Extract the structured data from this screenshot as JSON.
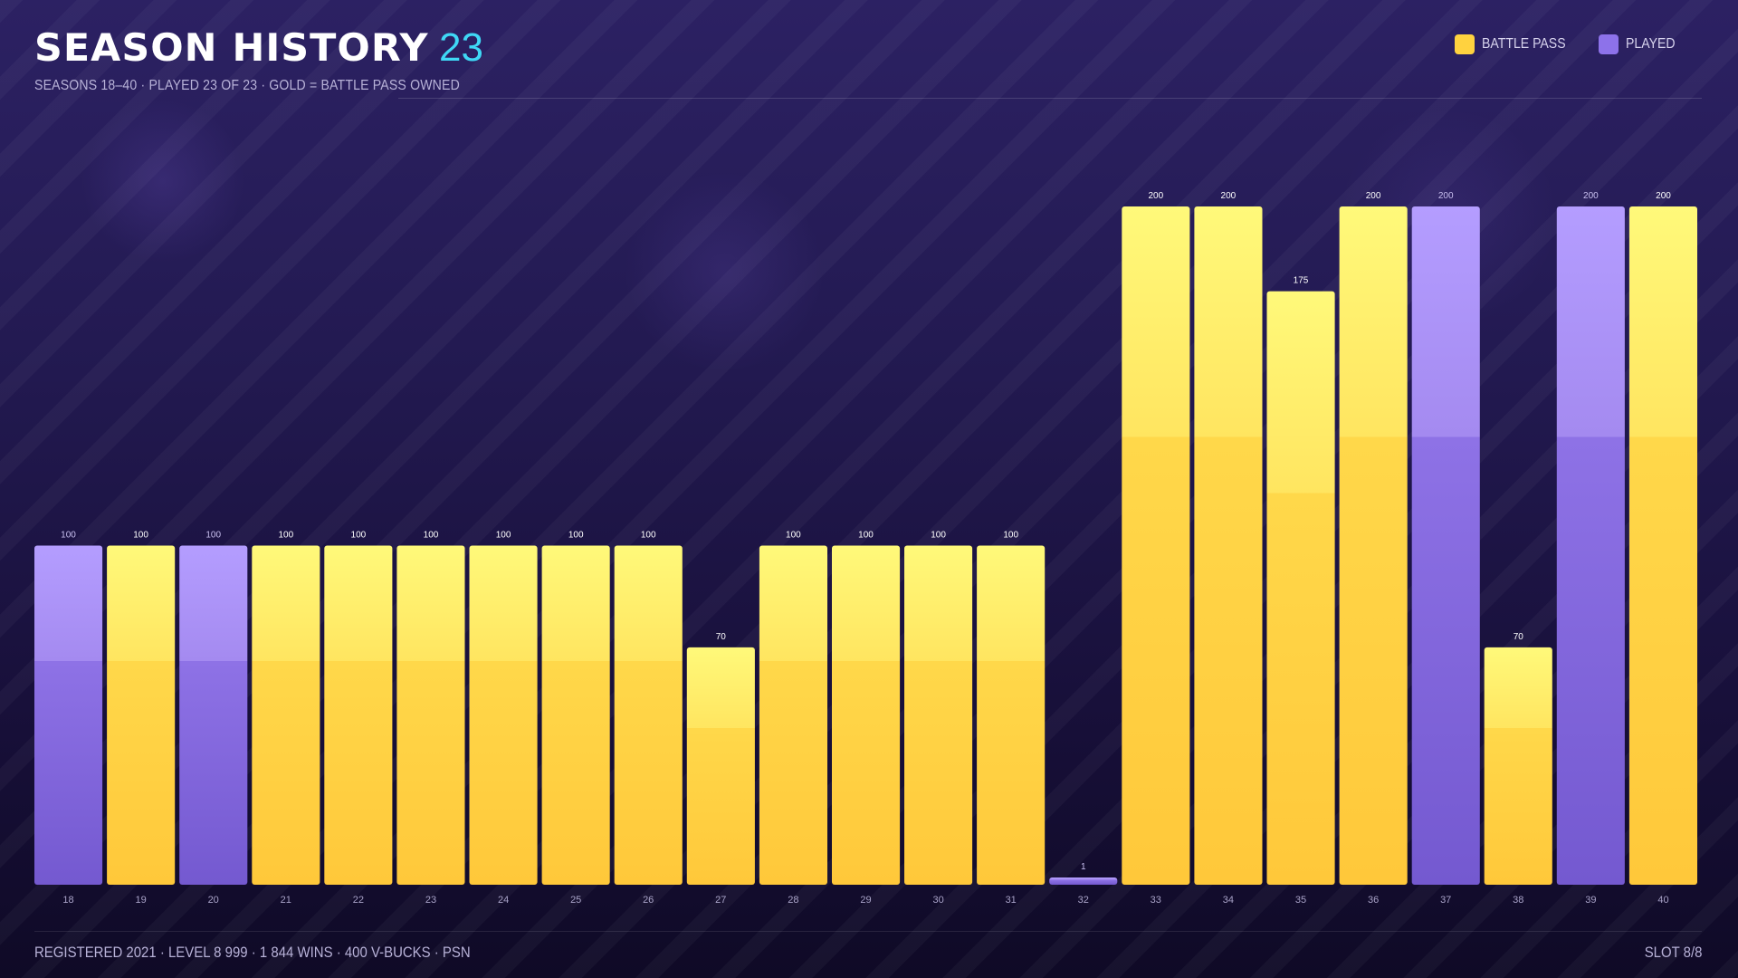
{
  "header": {
    "title": "SEASON HISTORY",
    "count": "23",
    "subtitle": "SEASONS 18–40 · PLAYED 23 OF 23 · GOLD = BATTLE PASS OWNED"
  },
  "legend": {
    "battle_pass_label": "BATTLE PASS",
    "played_label": "PLAYED"
  },
  "colors": {
    "battle_pass": "#ffd23f",
    "played": "#9a80f0",
    "accent": "#3fd8f5"
  },
  "chart_data": {
    "type": "bar",
    "categories": [
      "18",
      "19",
      "20",
      "21",
      "22",
      "23",
      "24",
      "25",
      "26",
      "27",
      "28",
      "29",
      "30",
      "31",
      "32",
      "33",
      "34",
      "35",
      "36",
      "37",
      "38",
      "39",
      "40"
    ],
    "values": [
      100,
      100,
      100,
      100,
      100,
      100,
      100,
      100,
      100,
      70,
      100,
      100,
      100,
      100,
      1,
      200,
      200,
      175,
      200,
      200,
      70,
      200,
      200
    ],
    "battle_pass": [
      false,
      true,
      false,
      true,
      true,
      true,
      true,
      true,
      true,
      true,
      true,
      true,
      true,
      true,
      false,
      true,
      true,
      true,
      true,
      false,
      true,
      false,
      true
    ],
    "ylim": [
      0,
      200
    ],
    "grid": false,
    "legend_position": "top-right"
  },
  "footer": {
    "left": "REGISTERED 2021 · LEVEL 8 999 · 1 844 WINS · 400 V-BUCKS · PSN",
    "right": "SLOT 8/8"
  }
}
